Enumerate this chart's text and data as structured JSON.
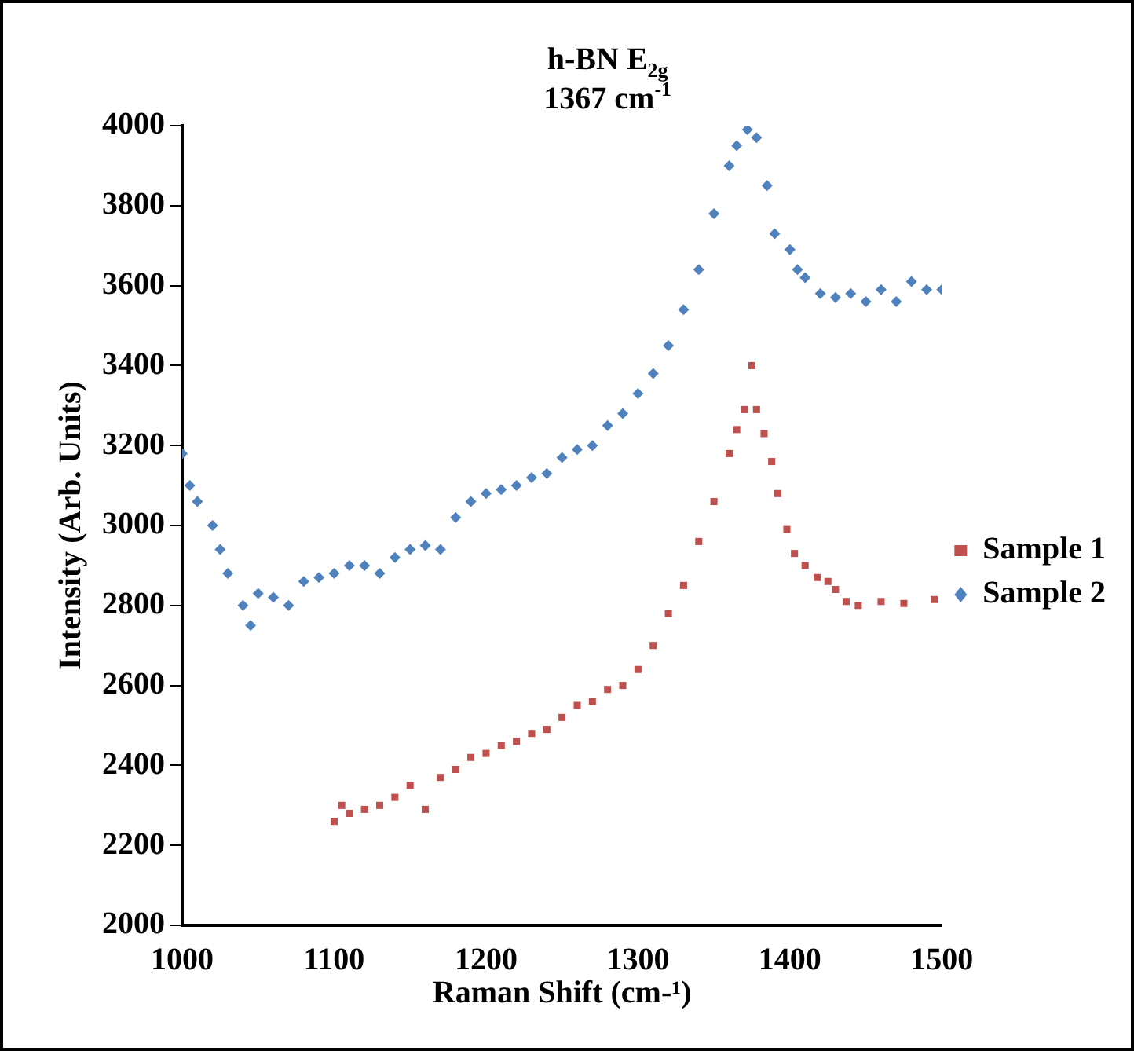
{
  "chart_data": {
    "type": "scatter",
    "annotations": [
      "h-BN E$_{2g}$",
      "1367 cm$^{-1}$"
    ],
    "xlabel": "Raman Shift (cm-¹)",
    "ylabel": "Intensity (Arb. Units)",
    "xlim": [
      1000,
      1500
    ],
    "xticks": [
      1000,
      1100,
      1200,
      1300,
      1400,
      1500
    ],
    "ylim": [
      2000,
      4000
    ],
    "yticks": [
      2000,
      2200,
      2400,
      2600,
      2800,
      3000,
      3200,
      3400,
      3600,
      3800,
      4000
    ],
    "grid": false,
    "legend": "right",
    "series": [
      {
        "name": "Sample 1",
        "color": "#c0504d",
        "marker": "square",
        "x": [
          1100,
          1105,
          1110,
          1120,
          1130,
          1140,
          1150,
          1160,
          1170,
          1180,
          1190,
          1200,
          1210,
          1220,
          1230,
          1240,
          1250,
          1260,
          1270,
          1280,
          1290,
          1300,
          1310,
          1320,
          1330,
          1340,
          1350,
          1360,
          1365,
          1370,
          1375,
          1378,
          1383,
          1388,
          1392,
          1398,
          1403,
          1410,
          1418,
          1425,
          1430,
          1437,
          1445,
          1460,
          1475,
          1495
        ],
        "values": [
          2260,
          2300,
          2280,
          2290,
          2300,
          2320,
          2350,
          2290,
          2370,
          2390,
          2420,
          2430,
          2450,
          2460,
          2480,
          2490,
          2520,
          2550,
          2560,
          2590,
          2600,
          2640,
          2700,
          2780,
          2850,
          2960,
          3060,
          3180,
          3240,
          3290,
          3400,
          3290,
          3230,
          3160,
          3080,
          2990,
          2930,
          2900,
          2870,
          2860,
          2840,
          2810,
          2800,
          2810,
          2805,
          2815
        ]
      },
      {
        "name": "Sample 2",
        "color": "#4f81bd",
        "marker": "diamond",
        "x": [
          1000,
          1005,
          1010,
          1020,
          1025,
          1030,
          1040,
          1045,
          1050,
          1060,
          1070,
          1080,
          1090,
          1100,
          1110,
          1120,
          1130,
          1140,
          1150,
          1160,
          1170,
          1180,
          1190,
          1200,
          1210,
          1220,
          1230,
          1240,
          1250,
          1260,
          1270,
          1280,
          1290,
          1300,
          1310,
          1320,
          1330,
          1340,
          1350,
          1360,
          1365,
          1372,
          1378,
          1385,
          1390,
          1400,
          1405,
          1410,
          1420,
          1430,
          1440,
          1450,
          1460,
          1470,
          1480,
          1490,
          1500
        ],
        "values": [
          3180,
          3100,
          3060,
          3000,
          2940,
          2880,
          2800,
          2750,
          2830,
          2820,
          2800,
          2860,
          2870,
          2880,
          2900,
          2900,
          2880,
          2920,
          2940,
          2950,
          2940,
          3020,
          3060,
          3080,
          3090,
          3100,
          3120,
          3130,
          3170,
          3190,
          3200,
          3250,
          3280,
          3330,
          3380,
          3450,
          3540,
          3640,
          3780,
          3900,
          3950,
          3990,
          3970,
          3850,
          3730,
          3690,
          3640,
          3620,
          3580,
          3570,
          3580,
          3560,
          3590,
          3560,
          3610,
          3590,
          3590
        ]
      }
    ]
  }
}
